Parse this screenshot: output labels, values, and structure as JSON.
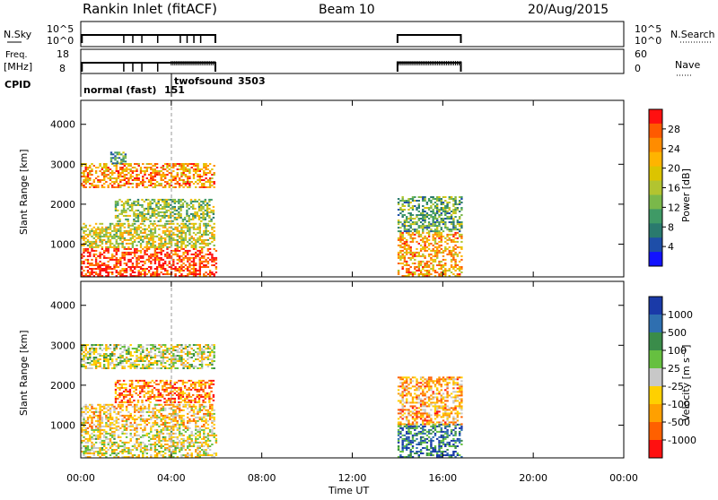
{
  "header": {
    "site_title": "Rankin Inlet (fitACF)",
    "beam": "Beam 10",
    "date": "20/Aug/2015"
  },
  "top_panels": {
    "nsky_label": "N.Sky",
    "nsky_ticks": [
      "10^5",
      "10^0"
    ],
    "nsearch_label": "N.Search",
    "nsearch_ticks": [
      "10^5",
      "10^0"
    ],
    "freq_label_line1": "Freq.",
    "freq_label_line2": "[MHz]",
    "freq_ticks": [
      "18",
      "8"
    ],
    "nave_label": "Nave",
    "nave_ticks": [
      "60",
      "0"
    ],
    "cpid_label": "CPID",
    "cpid_entries": [
      {
        "name": "normal (fast)",
        "id": "151"
      },
      {
        "name": "twofsound",
        "id": "3503"
      }
    ]
  },
  "chart_data": [
    {
      "type": "heatmap",
      "name": "power",
      "ylabel": "Slant Range [km]",
      "xlabel": "",
      "yticks": [
        "4000",
        "3000",
        "2000",
        "1000"
      ],
      "xlim_hours": [
        0,
        24
      ],
      "ylim_km": [
        180,
        4600
      ],
      "colorbar": {
        "label": "Power [dB]",
        "ticks": [
          "28",
          "24",
          "20",
          "16",
          "12",
          "8",
          "4"
        ],
        "colors": [
          "#ff1010",
          "#ff5a00",
          "#ff8c00",
          "#ffb400",
          "#dcc400",
          "#b2c430",
          "#7ab84a",
          "#3f9a66",
          "#2a7a6e",
          "#1e4ea8",
          "#1212ff"
        ]
      },
      "regions": [
        {
          "t": [
            0.0,
            6.0
          ],
          "r": [
            180,
            900
          ],
          "level": 0.92
        },
        {
          "t": [
            0.0,
            5.9
          ],
          "r": [
            900,
            1500
          ],
          "level": 0.55
        },
        {
          "t": [
            1.5,
            5.9
          ],
          "r": [
            1550,
            2100
          ],
          "level": 0.45
        },
        {
          "t": [
            0.0,
            5.9
          ],
          "r": [
            2400,
            3000
          ],
          "level": 0.75
        },
        {
          "t": [
            1.3,
            2.0
          ],
          "r": [
            3000,
            3300
          ],
          "level": 0.35
        },
        {
          "t": [
            14.0,
            16.8
          ],
          "r": [
            180,
            1300
          ],
          "level": 0.72
        },
        {
          "t": [
            14.0,
            16.8
          ],
          "r": [
            1300,
            2200
          ],
          "level": 0.35
        }
      ]
    },
    {
      "type": "heatmap",
      "name": "velocity",
      "ylabel": "Slant Range [km]",
      "xlabel": "Time UT",
      "yticks": [
        "4000",
        "3000",
        "2000",
        "1000"
      ],
      "xticks": [
        "00:00",
        "04:00",
        "08:00",
        "12:00",
        "16:00",
        "20:00",
        "00:00"
      ],
      "xlim_hours": [
        0,
        24
      ],
      "ylim_km": [
        180,
        4600
      ],
      "colorbar": {
        "label": "Velocity [m s⁻¹]",
        "ticks": [
          "1000",
          "500",
          "100",
          "25",
          "-25",
          "-100",
          "-500",
          "-1000"
        ],
        "colors": [
          "#1a3aa8",
          "#2f6fb0",
          "#3a8c4a",
          "#66c040",
          "#c8c8c8",
          "#ffd000",
          "#ffa000",
          "#ff6000",
          "#ff1010"
        ]
      },
      "regions": [
        {
          "t": [
            0.0,
            6.0
          ],
          "r": [
            180,
            900
          ],
          "level": 0.45
        },
        {
          "t": [
            0.0,
            5.9
          ],
          "r": [
            900,
            1500
          ],
          "level": 0.38
        },
        {
          "t": [
            1.5,
            5.9
          ],
          "r": [
            1550,
            2100
          ],
          "level": 0.2
        },
        {
          "t": [
            0.0,
            5.9
          ],
          "r": [
            2400,
            3000
          ],
          "level": 0.5
        },
        {
          "t": [
            14.0,
            16.8
          ],
          "r": [
            180,
            1000
          ],
          "level": 0.8
        },
        {
          "t": [
            14.0,
            16.8
          ],
          "r": [
            1000,
            2200
          ],
          "level": 0.3
        }
      ]
    }
  ]
}
